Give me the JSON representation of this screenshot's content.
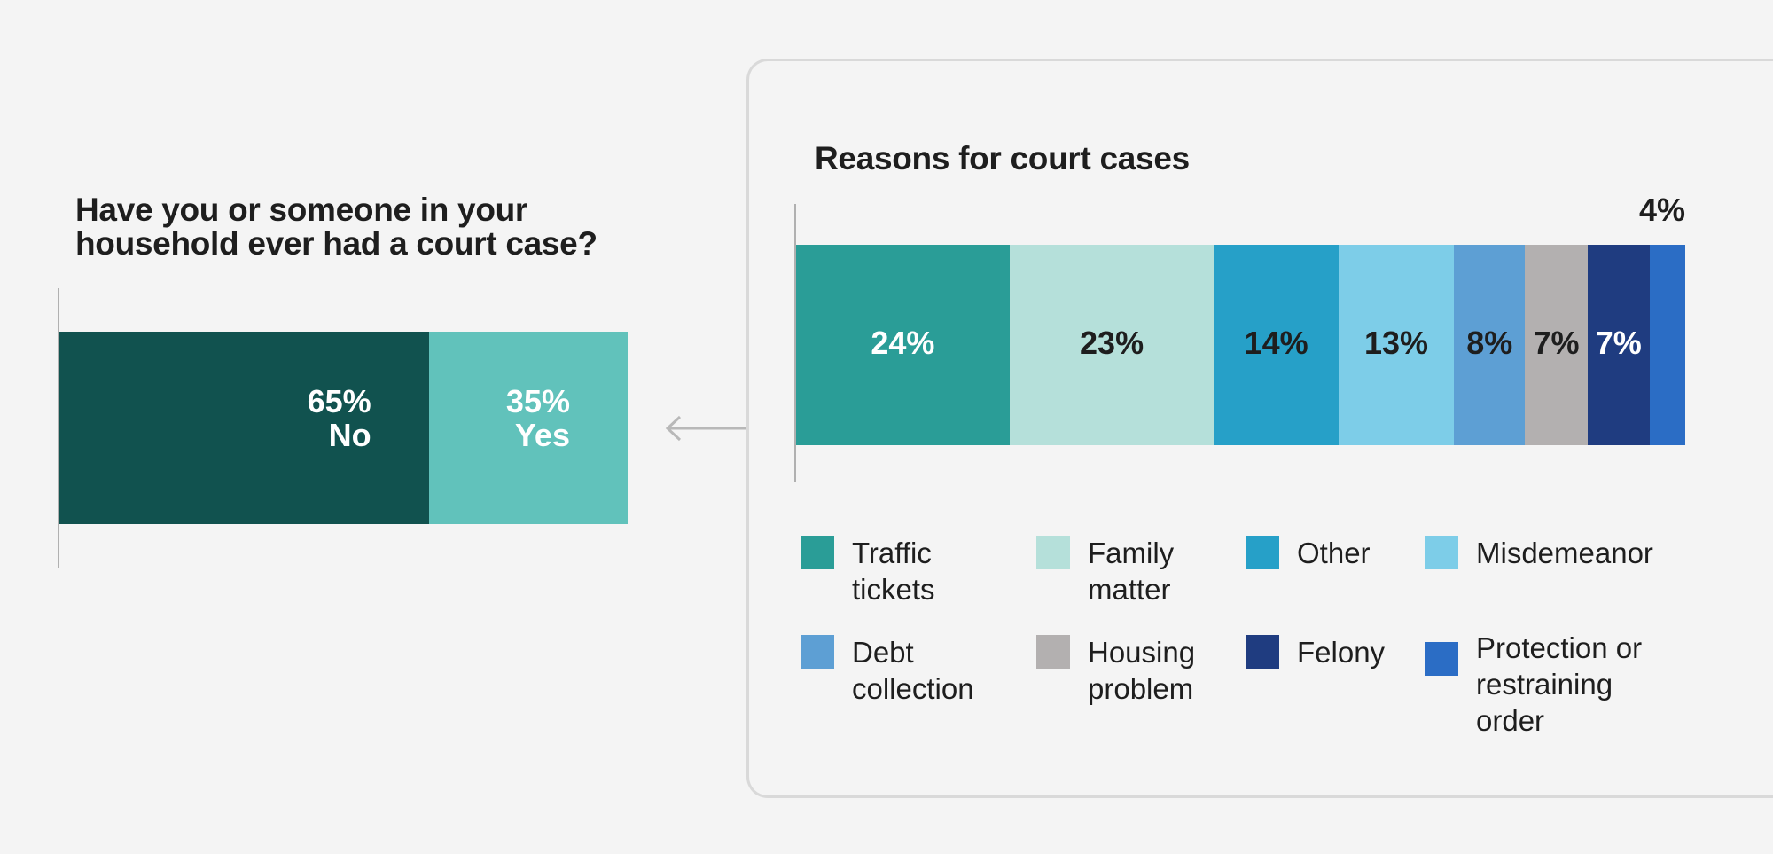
{
  "chart_data": [
    {
      "type": "bar",
      "stacked": true,
      "orientation": "horizontal",
      "title": "Have you or someone in your\nhousehold ever had a court case?",
      "series": [
        {
          "name": "No",
          "value": 65,
          "label": "65%",
          "color": "#11524f",
          "label_color": "#ffffff"
        },
        {
          "name": "Yes",
          "value": 35,
          "label": "35%",
          "color": "#61c2bb",
          "label_color": "#ffffff"
        }
      ],
      "xlim": [
        0,
        100
      ],
      "grid": false
    },
    {
      "type": "bar",
      "stacked": true,
      "orientation": "horizontal",
      "title": "Reasons for court cases",
      "series": [
        {
          "name": "Traffic\ntickets",
          "value": 24,
          "label": "24%",
          "color": "#2a9d97",
          "label_color": "#ffffff"
        },
        {
          "name": "Family\nmatter",
          "value": 23,
          "label": "23%",
          "color": "#b5e0da",
          "label_color": "#1e1e1e"
        },
        {
          "name": "Other",
          "value": 14,
          "label": "14%",
          "color": "#26a0c8",
          "label_color": "#1e1e1e"
        },
        {
          "name": "Misdemeanor",
          "value": 13,
          "label": "13%",
          "color": "#7dcde8",
          "label_color": "#1e1e1e"
        },
        {
          "name": "Debt\ncollection",
          "value": 8,
          "label": "8%",
          "color": "#5d9fd4",
          "label_color": "#1e1e1e"
        },
        {
          "name": "Housing\nproblem",
          "value": 7,
          "label": "7%",
          "color": "#b3b0b0",
          "label_color": "#1e1e1e"
        },
        {
          "name": "Felony",
          "value": 7,
          "label": "7%",
          "color": "#1f3c80",
          "label_color": "#ffffff"
        },
        {
          "name": "Protection or\nrestraining\norder",
          "value": 4,
          "label": "4%",
          "color": "#2b6dc5",
          "label_color": "#1e1e1e",
          "label_outside": true
        }
      ],
      "xlim": [
        0,
        100
      ],
      "grid": false,
      "legend_position": "bottom"
    }
  ]
}
